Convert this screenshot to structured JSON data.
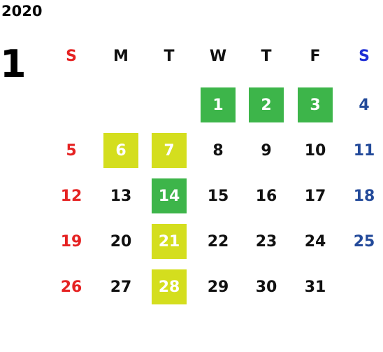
{
  "year": "2020",
  "month": "1",
  "weekdays": [
    "S",
    "M",
    "T",
    "W",
    "T",
    "F",
    "S"
  ],
  "weekday_colors": [
    "#e52222",
    "#111111",
    "#111111",
    "#111111",
    "#111111",
    "#111111",
    "#1f2ed6"
  ],
  "column_colors": [
    "#e52222",
    "#111111",
    "#111111",
    "#111111",
    "#111111",
    "#111111",
    "#234a9a"
  ],
  "weeks": [
    [
      null,
      null,
      null,
      "1",
      "2",
      "3",
      "4"
    ],
    [
      "5",
      "6",
      "7",
      "8",
      "9",
      "10",
      "11"
    ],
    [
      "12",
      "13",
      "14",
      "15",
      "16",
      "17",
      "18"
    ],
    [
      "19",
      "20",
      "21",
      "22",
      "23",
      "24",
      "25"
    ],
    [
      "26",
      "27",
      "28",
      "29",
      "30",
      "31",
      null
    ]
  ],
  "fills": [
    [
      null,
      null,
      null,
      "#3db54a",
      "#3db54a",
      "#3db54a",
      null
    ],
    [
      null,
      "#d4de1e",
      "#d4de1e",
      null,
      null,
      null,
      null
    ],
    [
      null,
      null,
      "#3db54a",
      null,
      null,
      null,
      null
    ],
    [
      null,
      null,
      "#d4de1e",
      null,
      null,
      null,
      null
    ],
    [
      null,
      null,
      "#d4de1e",
      null,
      null,
      null,
      null
    ]
  ]
}
